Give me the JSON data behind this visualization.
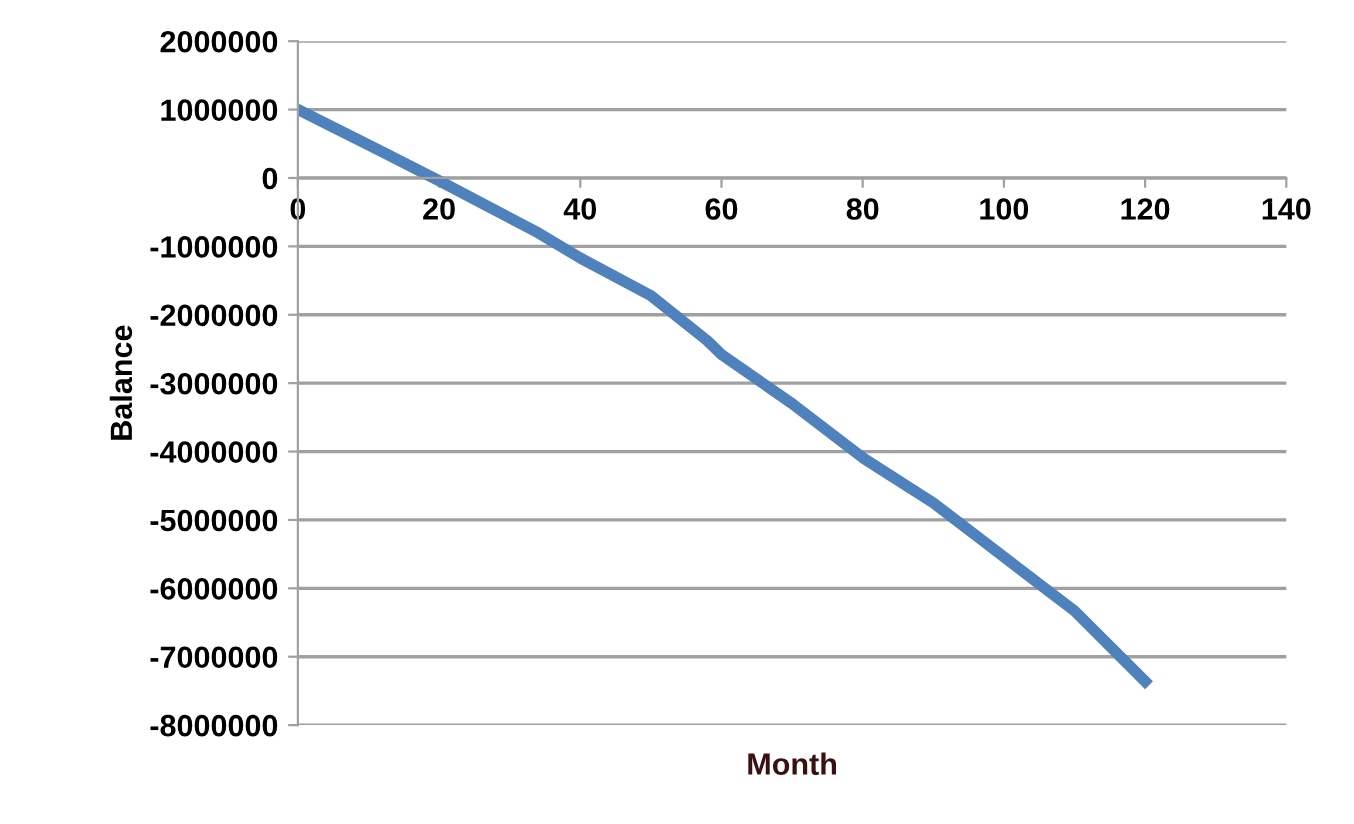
{
  "chart_data": {
    "type": "line",
    "xlabel": "Month",
    "ylabel": "Balance",
    "x": [
      0,
      12,
      20,
      34,
      40,
      50,
      58,
      60,
      70,
      80,
      90,
      100,
      110,
      120
    ],
    "series": [
      {
        "color": "#4f81bd",
        "values": [
          1000000,
          380000,
          -40000,
          -800000,
          -1170000,
          -1720000,
          -2380000,
          -2580000,
          -3300000,
          -4090000,
          -4750000,
          -5540000,
          -6330000,
          -7360000
        ]
      }
    ],
    "xlim": [
      0,
      140
    ],
    "xticks": [
      0,
      20,
      40,
      60,
      80,
      100,
      120,
      140
    ],
    "ylim": [
      -8000000,
      2000000
    ],
    "yticks": [
      -8000000,
      -7000000,
      -6000000,
      -5000000,
      -4000000,
      -3000000,
      -2000000,
      -1000000,
      0,
      1000000,
      2000000
    ],
    "grid": "y",
    "marker": "none",
    "line_style": "solid",
    "legend": false
  }
}
